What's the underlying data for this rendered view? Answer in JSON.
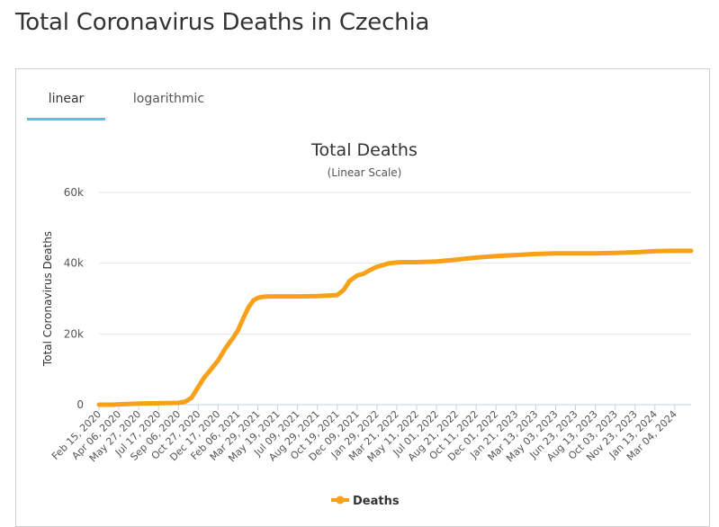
{
  "page": {
    "title": "Total Coronavirus Deaths in Czechia"
  },
  "tabs": [
    {
      "label": "linear",
      "active": true
    },
    {
      "label": "logarithmic",
      "active": false
    }
  ],
  "colors": {
    "series": "#f7a01a",
    "tab_accent": "#4fc3e8",
    "grid": "#e6e6e6",
    "baseline": "#b8d6e8"
  },
  "chart_data": {
    "type": "line",
    "title": "Total Deaths",
    "subtitle": "(Linear Scale)",
    "ylabel": "Total Coronavirus Deaths",
    "xlabel": "",
    "ylim": [
      0,
      60000
    ],
    "yticks": [
      0,
      20000,
      40000,
      60000
    ],
    "ytick_labels": [
      "0",
      "20k",
      "40k",
      "60k"
    ],
    "grid": true,
    "legend": "bottom-center",
    "categories": [
      "Feb 15, 2020",
      "Apr 06, 2020",
      "May 27, 2020",
      "Jul 17, 2020",
      "Sep 06, 2020",
      "Oct 27, 2020",
      "Dec 17, 2020",
      "Feb 06, 2021",
      "Mar 29, 2021",
      "May 19, 2021",
      "Jul 09, 2021",
      "Aug 29, 2021",
      "Oct 19, 2021",
      "Dec 09, 2021",
      "Jan 29, 2022",
      "Mar 21, 2022",
      "May 11, 2022",
      "Jul 01, 2022",
      "Aug 21, 2022",
      "Oct 11, 2022",
      "Dec 01, 2022",
      "Jan 21, 2023",
      "Mar 13, 2023",
      "May 03, 2023",
      "Jun 23, 2023",
      "Aug 13, 2023",
      "Oct 03, 2023",
      "Nov 23, 2023",
      "Jan 13, 2024",
      "Mar 04, 2024"
    ],
    "series": [
      {
        "name": "Deaths",
        "x": [
          "Feb 15, 2020",
          "Mar 20, 2020",
          "Apr 06, 2020",
          "May 27, 2020",
          "Jul 17, 2020",
          "Sep 06, 2020",
          "Sep 25, 2020",
          "Oct 10, 2020",
          "Oct 27, 2020",
          "Nov 10, 2020",
          "Nov 25, 2020",
          "Dec 17, 2020",
          "Jan 05, 2021",
          "Jan 25, 2021",
          "Feb 06, 2021",
          "Feb 20, 2021",
          "Mar 05, 2021",
          "Mar 18, 2021",
          "Mar 29, 2021",
          "Apr 12, 2021",
          "Apr 26, 2021",
          "May 19, 2021",
          "Jul 09, 2021",
          "Aug 29, 2021",
          "Oct 19, 2021",
          "Nov 05, 2021",
          "Nov 20, 2021",
          "Dec 09, 2021",
          "Dec 25, 2021",
          "Jan 10, 2022",
          "Jan 29, 2022",
          "Feb 15, 2022",
          "Mar 01, 2022",
          "Mar 21, 2022",
          "Apr 10, 2022",
          "May 11, 2022",
          "Jul 01, 2022",
          "Aug 21, 2022",
          "Oct 11, 2022",
          "Dec 01, 2022",
          "Jan 21, 2023",
          "Mar 13, 2023",
          "May 03, 2023",
          "Jun 23, 2023",
          "Aug 13, 2023",
          "Oct 03, 2023",
          "Nov 23, 2023",
          "Jan 13, 2024",
          "Mar 04, 2024",
          "Apr 15, 2024"
        ],
        "values": [
          0,
          0,
          100,
          300,
          400,
          500,
          900,
          2000,
          5000,
          7500,
          9500,
          12500,
          16000,
          19000,
          21000,
          24500,
          27500,
          29500,
          30200,
          30500,
          30600,
          30600,
          30600,
          30700,
          31000,
          32500,
          35000,
          36500,
          37000,
          38000,
          39000,
          39500,
          40000,
          40200,
          40300,
          40300,
          40500,
          41000,
          41600,
          42000,
          42300,
          42600,
          42800,
          42800,
          42800,
          42900,
          43100,
          43400,
          43500,
          43500
        ]
      }
    ]
  }
}
